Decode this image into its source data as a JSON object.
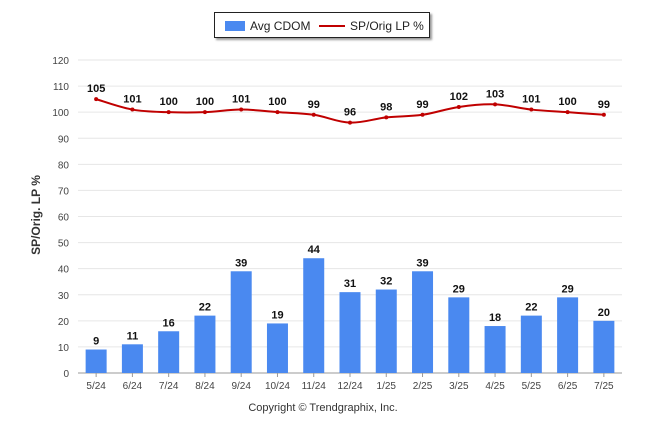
{
  "chart_data": {
    "type": "bar",
    "categories": [
      "5/24",
      "6/24",
      "7/24",
      "8/24",
      "9/24",
      "10/24",
      "11/24",
      "12/24",
      "1/25",
      "2/25",
      "3/25",
      "4/25",
      "5/25",
      "6/25",
      "7/25"
    ],
    "series": [
      {
        "name": "Avg CDOM",
        "type": "bar",
        "color": "#4a89f0",
        "values": [
          9,
          11,
          16,
          22,
          39,
          19,
          44,
          31,
          32,
          39,
          29,
          18,
          22,
          29,
          20
        ]
      },
      {
        "name": "SP/Orig LP %",
        "type": "line",
        "color": "#c00000",
        "values": [
          105,
          101,
          100,
          100,
          101,
          100,
          99,
          96,
          98,
          99,
          102,
          103,
          101,
          100,
          99
        ]
      }
    ],
    "ylabel": "SP/Orig. LP %",
    "ylim": [
      0,
      120
    ],
    "yticks": [
      0,
      10,
      20,
      30,
      40,
      50,
      60,
      70,
      80,
      90,
      100,
      110,
      120
    ],
    "grid": true,
    "legend_position": "top-center"
  },
  "footer": {
    "credit": "Copyright © Trendgraphix, Inc."
  }
}
